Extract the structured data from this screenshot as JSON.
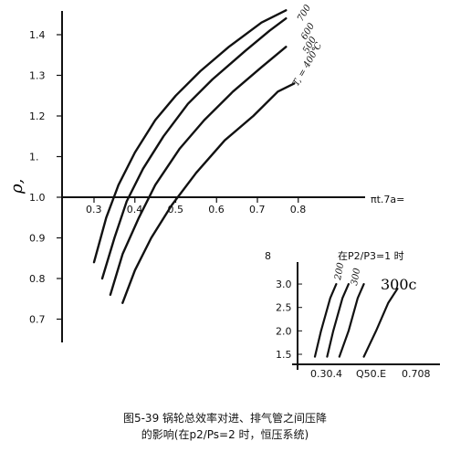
{
  "chart_data": [
    {
      "type": "line",
      "title": "",
      "xlabel": "πt.7a=",
      "ylabel": "ρ,",
      "xlim": [
        0.25,
        0.85
      ],
      "ylim": [
        0.65,
        1.45
      ],
      "x_ticks": [
        "0.3",
        "0.4",
        "0.5",
        "0.6",
        "0.7",
        "0.8"
      ],
      "y_ticks": [
        "0.7",
        "0.8",
        "0.9",
        "1.0",
        "1.",
        "1.2",
        "1.3",
        "1.4"
      ],
      "grid": false,
      "series": [
        {
          "name": "700",
          "points": [
            [
              0.3,
              0.84
            ],
            [
              0.33,
              0.95
            ],
            [
              0.36,
              1.03
            ],
            [
              0.4,
              1.11
            ],
            [
              0.45,
              1.19
            ],
            [
              0.5,
              1.25
            ],
            [
              0.56,
              1.31
            ],
            [
              0.63,
              1.37
            ],
            [
              0.71,
              1.43
            ],
            [
              0.77,
              1.46
            ]
          ]
        },
        {
          "name": "600",
          "points": [
            [
              0.32,
              0.8
            ],
            [
              0.35,
              0.9
            ],
            [
              0.38,
              0.99
            ],
            [
              0.42,
              1.07
            ],
            [
              0.47,
              1.15
            ],
            [
              0.53,
              1.23
            ],
            [
              0.59,
              1.29
            ],
            [
              0.67,
              1.36
            ],
            [
              0.73,
              1.41
            ],
            [
              0.77,
              1.44
            ]
          ]
        },
        {
          "name": "500",
          "points": [
            [
              0.34,
              0.76
            ],
            [
              0.37,
              0.86
            ],
            [
              0.41,
              0.95
            ],
            [
              0.45,
              1.03
            ],
            [
              0.51,
              1.12
            ],
            [
              0.57,
              1.19
            ],
            [
              0.64,
              1.26
            ],
            [
              0.71,
              1.32
            ],
            [
              0.77,
              1.37
            ]
          ]
        },
        {
          "name": "T, = 400℃",
          "points": [
            [
              0.37,
              0.74
            ],
            [
              0.4,
              0.82
            ],
            [
              0.44,
              0.9
            ],
            [
              0.49,
              0.98
            ],
            [
              0.55,
              1.06
            ],
            [
              0.62,
              1.14
            ],
            [
              0.69,
              1.2
            ],
            [
              0.75,
              1.26
            ],
            [
              0.79,
              1.28
            ]
          ]
        }
      ]
    },
    {
      "type": "line",
      "title": "在P2/P3=1 时",
      "xlabel": "",
      "ylabel": "8",
      "xlim": [
        0.25,
        0.75
      ],
      "ylim": [
        1.4,
        3.3
      ],
      "x_ticks": [
        "0.30.4",
        "Q50.E",
        "0.708"
      ],
      "y_ticks": [
        "1.5",
        "2.0",
        "2.5",
        "3.0"
      ],
      "series": [
        {
          "name": "200",
          "points": [
            [
              0.3,
              1.45
            ],
            [
              0.32,
              2.0
            ],
            [
              0.35,
              2.7
            ],
            [
              0.37,
              3.0
            ]
          ]
        },
        {
          "name": "300",
          "points": [
            [
              0.34,
              1.45
            ],
            [
              0.36,
              2.0
            ],
            [
              0.39,
              2.7
            ],
            [
              0.41,
              3.0
            ]
          ]
        },
        {
          "name": "",
          "points": [
            [
              0.38,
              1.45
            ],
            [
              0.41,
              2.0
            ],
            [
              0.44,
              2.7
            ],
            [
              0.46,
              3.0
            ]
          ]
        },
        {
          "name": "300c",
          "points": [
            [
              0.46,
              1.45
            ],
            [
              0.5,
              2.0
            ],
            [
              0.54,
              2.6
            ],
            [
              0.57,
              2.9
            ]
          ]
        }
      ]
    }
  ],
  "caption": {
    "line1": "图5-39  锅轮总效率对进、排气管之间压降",
    "line2": "的影响(在p2/Ps=2   时，恒压系统)"
  }
}
